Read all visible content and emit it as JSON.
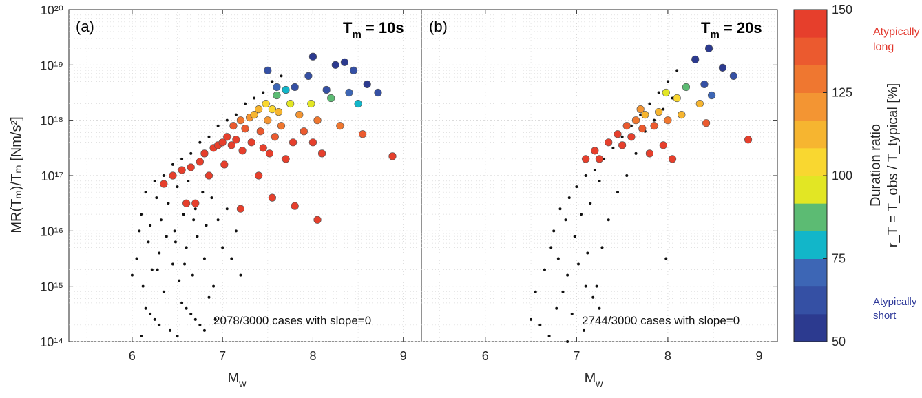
{
  "chart_data": {
    "type": "scatter",
    "xlabel_main": "M",
    "xlabel_sub": "w",
    "ylabel": "MR(Tₘ)/Tₘ [Nm/s²]",
    "xlim": [
      5.3,
      9.2
    ],
    "ylim_log10": [
      14,
      20
    ],
    "yscale": "log",
    "x_ticks": [
      "6",
      "7",
      "8",
      "9"
    ],
    "x_tick_values": [
      6,
      7,
      8,
      9
    ],
    "y_ticks": [
      "10¹⁴",
      "10¹⁵",
      "10¹⁶",
      "10¹⁷",
      "10¹⁸",
      "10¹⁹",
      "10²⁰"
    ],
    "y_tick_exponents": [
      14,
      15,
      16,
      17,
      18,
      19,
      20
    ],
    "grid": true,
    "minor_grid": true,
    "colorbar": {
      "label": "Duration ratio",
      "sublabel": "r_T = T_obs / T_typical [%]",
      "min": 50,
      "max": 150,
      "ticks": [
        "50",
        "75",
        "100",
        "125",
        "150"
      ],
      "tick_values": [
        50,
        75,
        100,
        125,
        150
      ],
      "bands": [
        "#2c3a8f",
        "#3550a4",
        "#3d66b5",
        "#12b6c9",
        "#5cbb73",
        "#e2e624",
        "#f9d730",
        "#f6b530",
        "#f39533",
        "#ef7730",
        "#eb5a2f",
        "#e63f2c"
      ],
      "top_note_line1": "Atypically",
      "top_note_line2": "long",
      "bottom_note_line1": "Atypically",
      "bottom_note_line2": "short",
      "top_note_color": "#e2352b",
      "bottom_note_color": "#2f3a9a"
    },
    "panels": [
      {
        "tag": "(a)",
        "period_main": "T",
        "period_sub": "m",
        "period_value": " = 10s",
        "count_note": "2078/3000 cases with slope=0",
        "black_dots": [
          [
            6.0,
            15.2
          ],
          [
            6.05,
            15.5
          ],
          [
            6.08,
            16.0
          ],
          [
            6.1,
            16.3
          ],
          [
            6.12,
            15.0
          ],
          [
            6.15,
            14.6
          ],
          [
            6.18,
            15.8
          ],
          [
            6.2,
            16.1
          ],
          [
            6.22,
            15.3
          ],
          [
            6.25,
            14.4
          ],
          [
            6.27,
            16.6
          ],
          [
            6.3,
            15.6
          ],
          [
            6.32,
            16.2
          ],
          [
            6.35,
            14.9
          ],
          [
            6.38,
            15.9
          ],
          [
            6.4,
            16.5
          ],
          [
            6.42,
            14.2
          ],
          [
            6.45,
            15.4
          ],
          [
            6.47,
            16.0
          ],
          [
            6.5,
            16.8
          ],
          [
            6.52,
            15.1
          ],
          [
            6.55,
            14.7
          ],
          [
            6.57,
            16.3
          ],
          [
            6.6,
            15.7
          ],
          [
            6.62,
            16.9
          ],
          [
            6.65,
            14.5
          ],
          [
            6.67,
            15.2
          ],
          [
            6.7,
            16.4
          ],
          [
            6.72,
            15.9
          ],
          [
            6.75,
            14.3
          ],
          [
            6.78,
            16.7
          ],
          [
            6.8,
            15.5
          ],
          [
            6.82,
            16.1
          ],
          [
            6.85,
            14.8
          ],
          [
            6.88,
            16.6
          ],
          [
            6.9,
            15.0
          ],
          [
            6.95,
            16.2
          ],
          [
            7.0,
            15.7
          ],
          [
            7.05,
            16.4
          ],
          [
            7.1,
            15.5
          ],
          [
            7.15,
            16.0
          ],
          [
            7.2,
            15.2
          ],
          [
            6.15,
            16.7
          ],
          [
            6.25,
            16.9
          ],
          [
            6.35,
            17.0
          ],
          [
            6.45,
            17.2
          ],
          [
            6.55,
            17.3
          ],
          [
            6.65,
            17.4
          ],
          [
            6.75,
            17.6
          ],
          [
            6.85,
            17.7
          ],
          [
            6.95,
            17.9
          ],
          [
            7.05,
            18.0
          ],
          [
            7.15,
            18.1
          ],
          [
            7.25,
            18.3
          ],
          [
            7.35,
            18.4
          ],
          [
            7.45,
            18.5
          ],
          [
            7.55,
            18.7
          ],
          [
            7.65,
            18.8
          ],
          [
            6.1,
            14.1
          ],
          [
            6.2,
            14.5
          ],
          [
            6.3,
            14.3
          ],
          [
            6.5,
            14.1
          ],
          [
            6.6,
            14.6
          ],
          [
            6.7,
            14.4
          ],
          [
            6.8,
            14.2
          ],
          [
            6.92,
            14.4
          ],
          [
            6.28,
            15.3
          ],
          [
            6.48,
            15.8
          ],
          [
            6.68,
            16.2
          ],
          [
            6.58,
            15.4
          ]
        ],
        "colored_points": [
          [
            6.35,
            16.85,
            150
          ],
          [
            6.45,
            17.0,
            150
          ],
          [
            6.55,
            17.1,
            148
          ],
          [
            6.65,
            17.15,
            150
          ],
          [
            6.7,
            16.5,
            148
          ],
          [
            6.75,
            17.25,
            150
          ],
          [
            6.8,
            17.4,
            148
          ],
          [
            6.85,
            17.0,
            150
          ],
          [
            6.9,
            17.5,
            145
          ],
          [
            6.95,
            17.55,
            150
          ],
          [
            7.0,
            17.6,
            150
          ],
          [
            7.02,
            17.2,
            148
          ],
          [
            7.05,
            17.7,
            145
          ],
          [
            7.1,
            17.55,
            150
          ],
          [
            7.12,
            17.9,
            140
          ],
          [
            7.15,
            17.65,
            145
          ],
          [
            7.2,
            18.0,
            130
          ],
          [
            7.22,
            17.45,
            150
          ],
          [
            7.25,
            17.85,
            135
          ],
          [
            7.3,
            18.05,
            120
          ],
          [
            7.32,
            17.6,
            148
          ],
          [
            7.35,
            18.1,
            115
          ],
          [
            7.4,
            18.2,
            110
          ],
          [
            7.42,
            17.8,
            140
          ],
          [
            7.45,
            17.5,
            150
          ],
          [
            7.48,
            18.3,
            100
          ],
          [
            7.5,
            18.0,
            120
          ],
          [
            7.52,
            17.4,
            148
          ],
          [
            7.55,
            18.2,
            105
          ],
          [
            7.58,
            17.7,
            140
          ],
          [
            7.6,
            18.45,
            85
          ],
          [
            7.62,
            18.15,
            110
          ],
          [
            7.65,
            17.9,
            130
          ],
          [
            7.7,
            18.55,
            80
          ],
          [
            7.75,
            18.3,
            95
          ],
          [
            7.78,
            17.6,
            145
          ],
          [
            7.8,
            18.6,
            65
          ],
          [
            7.85,
            18.1,
            120
          ],
          [
            7.9,
            17.8,
            135
          ],
          [
            7.95,
            18.8,
            60
          ],
          [
            7.98,
            18.3,
            95
          ],
          [
            8.0,
            19.15,
            55
          ],
          [
            8.05,
            18.0,
            130
          ],
          [
            8.1,
            17.4,
            148
          ],
          [
            8.15,
            18.55,
            62
          ],
          [
            8.2,
            18.4,
            90
          ],
          [
            8.25,
            19.0,
            58
          ],
          [
            8.3,
            17.9,
            125
          ],
          [
            8.35,
            19.05,
            55
          ],
          [
            8.4,
            18.5,
            70
          ],
          [
            8.45,
            18.9,
            60
          ],
          [
            8.5,
            18.3,
            78
          ],
          [
            8.55,
            17.75,
            135
          ],
          [
            8.6,
            18.65,
            58
          ],
          [
            8.72,
            18.5,
            60
          ],
          [
            8.88,
            17.35,
            150
          ],
          [
            7.55,
            16.6,
            150
          ],
          [
            7.8,
            16.45,
            150
          ],
          [
            8.05,
            16.2,
            150
          ],
          [
            7.2,
            16.4,
            150
          ],
          [
            6.6,
            16.5,
            150
          ],
          [
            7.4,
            17.0,
            148
          ],
          [
            7.7,
            17.3,
            148
          ],
          [
            8.0,
            17.6,
            145
          ],
          [
            7.6,
            18.6,
            70
          ],
          [
            7.5,
            18.9,
            60
          ]
        ]
      },
      {
        "tag": "(b)",
        "period_main": "T",
        "period_sub": "m",
        "period_value": " = 20s",
        "count_note": "2744/3000 cases with slope=0",
        "black_dots": [
          [
            6.5,
            14.4
          ],
          [
            6.55,
            14.9
          ],
          [
            6.6,
            14.3
          ],
          [
            6.65,
            15.3
          ],
          [
            6.7,
            14.1
          ],
          [
            6.72,
            15.7
          ],
          [
            6.75,
            16.0
          ],
          [
            6.78,
            14.6
          ],
          [
            6.8,
            15.5
          ],
          [
            6.82,
            16.4
          ],
          [
            6.85,
            14.9
          ],
          [
            6.88,
            16.2
          ],
          [
            6.9,
            15.2
          ],
          [
            6.92,
            16.6
          ],
          [
            6.95,
            14.5
          ],
          [
            6.98,
            15.9
          ],
          [
            7.0,
            16.8
          ],
          [
            7.02,
            15.4
          ],
          [
            7.05,
            16.3
          ],
          [
            7.08,
            14.2
          ],
          [
            7.1,
            17.0
          ],
          [
            7.12,
            15.6
          ],
          [
            7.15,
            16.5
          ],
          [
            7.18,
            14.8
          ],
          [
            7.2,
            17.1
          ],
          [
            7.22,
            15.0
          ],
          [
            7.25,
            16.9
          ],
          [
            7.28,
            15.7
          ],
          [
            7.3,
            17.3
          ],
          [
            7.35,
            16.2
          ],
          [
            7.4,
            17.5
          ],
          [
            7.45,
            16.7
          ],
          [
            7.5,
            17.7
          ],
          [
            7.55,
            17.0
          ],
          [
            7.6,
            17.9
          ],
          [
            7.65,
            17.4
          ],
          [
            7.7,
            18.1
          ],
          [
            7.75,
            17.8
          ],
          [
            7.8,
            18.3
          ],
          [
            7.85,
            18.0
          ],
          [
            7.9,
            18.5
          ],
          [
            7.95,
            18.2
          ],
          [
            8.0,
            18.7
          ],
          [
            8.05,
            18.4
          ],
          [
            8.1,
            18.9
          ],
          [
            7.98,
            15.5
          ],
          [
            6.9,
            14.0
          ],
          [
            7.1,
            15.0
          ],
          [
            7.25,
            14.6
          ]
        ],
        "colored_points": [
          [
            7.1,
            17.3,
            150
          ],
          [
            7.2,
            17.45,
            150
          ],
          [
            7.25,
            17.3,
            148
          ],
          [
            7.35,
            17.6,
            148
          ],
          [
            7.45,
            17.75,
            148
          ],
          [
            7.5,
            17.55,
            150
          ],
          [
            7.55,
            17.9,
            140
          ],
          [
            7.6,
            17.7,
            148
          ],
          [
            7.65,
            18.0,
            130
          ],
          [
            7.7,
            18.2,
            120
          ],
          [
            7.72,
            17.85,
            140
          ],
          [
            7.75,
            18.1,
            115
          ],
          [
            7.8,
            17.4,
            150
          ],
          [
            7.85,
            17.9,
            135
          ],
          [
            7.9,
            18.15,
            110
          ],
          [
            7.95,
            17.55,
            148
          ],
          [
            7.98,
            18.5,
            95
          ],
          [
            8.0,
            18.0,
            125
          ],
          [
            8.05,
            17.3,
            150
          ],
          [
            8.1,
            18.4,
            105
          ],
          [
            8.15,
            18.1,
            112
          ],
          [
            8.2,
            18.6,
            88
          ],
          [
            8.3,
            19.1,
            55
          ],
          [
            8.35,
            18.3,
            110
          ],
          [
            8.4,
            18.65,
            65
          ],
          [
            8.42,
            17.95,
            135
          ],
          [
            8.45,
            19.3,
            52
          ],
          [
            8.48,
            18.45,
            72
          ],
          [
            8.6,
            18.95,
            58
          ],
          [
            8.72,
            18.8,
            60
          ],
          [
            8.88,
            17.65,
            150
          ]
        ]
      }
    ]
  }
}
